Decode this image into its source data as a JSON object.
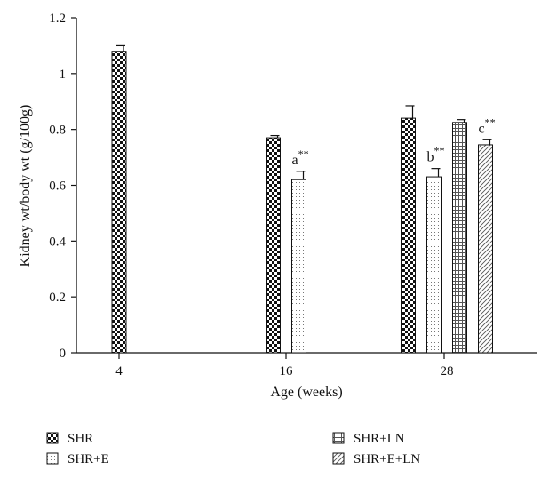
{
  "chart_data": {
    "type": "bar",
    "xlabel": "Age (weeks)",
    "ylabel": "Kidney wt/body wt (g/100g)",
    "ylim": [
      0,
      1.2
    ],
    "yticks": [
      "0",
      "0.2",
      "0.4",
      "0.6",
      "0.8",
      "1",
      "1.2"
    ],
    "categories": [
      "4",
      "16",
      "28"
    ],
    "legend_position": "bottom",
    "series": [
      {
        "name": "SHR",
        "pattern": "checker",
        "values": [
          1.08,
          0.77,
          0.84
        ],
        "errors": [
          0.02,
          0.008,
          0.045
        ]
      },
      {
        "name": "SHR+E",
        "pattern": "dots",
        "values": [
          null,
          0.62,
          0.63
        ],
        "errors": [
          null,
          0.03,
          0.03
        ]
      },
      {
        "name": "SHR+LN",
        "pattern": "grid",
        "values": [
          null,
          null,
          0.825
        ],
        "errors": [
          null,
          null,
          0.01
        ]
      },
      {
        "name": "SHR+E+LN",
        "pattern": "hatch",
        "values": [
          null,
          null,
          0.745
        ],
        "errors": [
          null,
          null,
          0.018
        ]
      }
    ],
    "annotations": [
      {
        "series": 1,
        "category": 1,
        "text": "a",
        "sup": "**"
      },
      {
        "series": 1,
        "category": 2,
        "text": "b",
        "sup": "**"
      },
      {
        "series": 3,
        "category": 2,
        "text": "c",
        "sup": "**"
      }
    ]
  }
}
